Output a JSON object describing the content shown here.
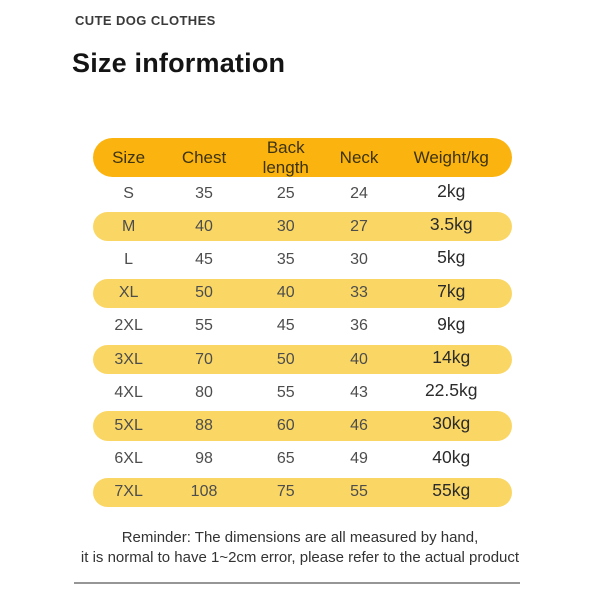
{
  "page": {
    "brand": "CUTE DOG CLOTHES",
    "title": "Size information"
  },
  "table": {
    "columns": [
      "Size",
      "Chest",
      "Back length",
      "Neck",
      "Weight/kg"
    ],
    "rows": [
      {
        "size": "S",
        "chest": "35",
        "back_length": "25",
        "neck": "24",
        "weight": "2kg",
        "highlight": false
      },
      {
        "size": "M",
        "chest": "40",
        "back_length": "30",
        "neck": "27",
        "weight": "3.5kg",
        "highlight": true
      },
      {
        "size": "L",
        "chest": "45",
        "back_length": "35",
        "neck": "30",
        "weight": "5kg",
        "highlight": false
      },
      {
        "size": "XL",
        "chest": "50",
        "back_length": "40",
        "neck": "33",
        "weight": "7kg",
        "highlight": true
      },
      {
        "size": "2XL",
        "chest": "55",
        "back_length": "45",
        "neck": "36",
        "weight": "9kg",
        "highlight": false
      },
      {
        "size": "3XL",
        "chest": "70",
        "back_length": "50",
        "neck": "40",
        "weight": "14kg",
        "highlight": true
      },
      {
        "size": "4XL",
        "chest": "80",
        "back_length": "55",
        "neck": "43",
        "weight": "22.5kg",
        "highlight": false
      },
      {
        "size": "5XL",
        "chest": "88",
        "back_length": "60",
        "neck": "46",
        "weight": "30kg",
        "highlight": true
      },
      {
        "size": "6XL",
        "chest": "98",
        "back_length": "65",
        "neck": "49",
        "weight": "40kg",
        "highlight": false
      },
      {
        "size": "7XL",
        "chest": "108",
        "back_length": "75",
        "neck": "55",
        "weight": "55kg",
        "highlight": true
      }
    ]
  },
  "footer": {
    "reminder_line1": "Reminder: The dimensions are all measured by hand,",
    "reminder_line2": "it is normal to have 1~2cm error, please refer to the actual product"
  },
  "colors": {
    "header_bg": "#FBB40F",
    "row_highlight_bg": "#FAD765"
  }
}
